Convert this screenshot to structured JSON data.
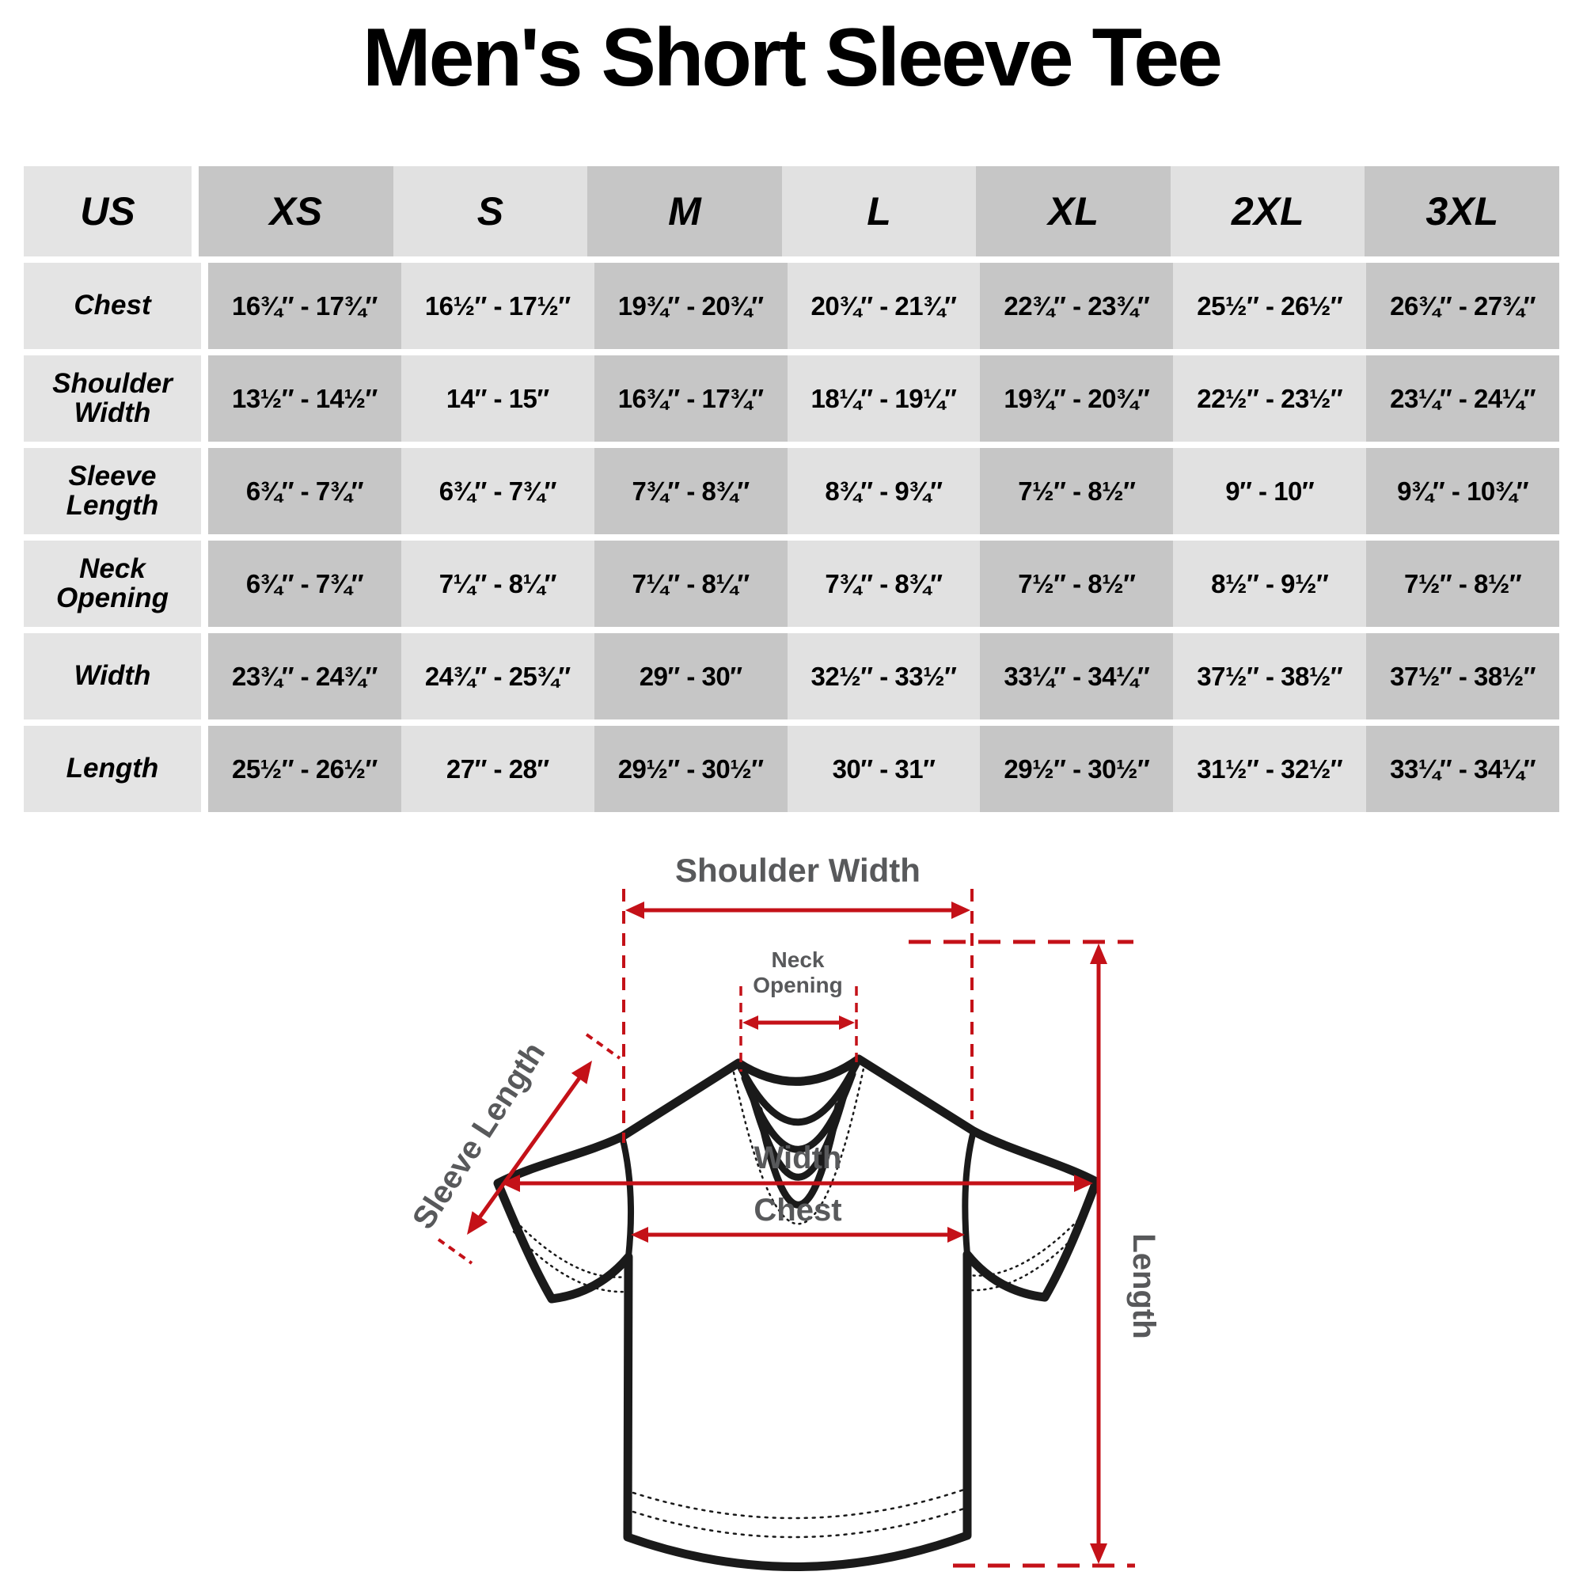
{
  "title": "Men's Short Sleeve Tee",
  "table": {
    "corner_label": "US",
    "sizes": [
      "XS",
      "S",
      "M",
      "L",
      "XL",
      "2XL",
      "3XL"
    ],
    "rows": [
      {
        "label": "Chest",
        "values": [
          "16¾″ - 17¾″",
          "16½″ - 17½″",
          "19¾″ - 20¾″",
          "20¾″ - 21¾″",
          "22¾″ - 23¾″",
          "25½″ - 26½″",
          "26¾″ - 27¾″"
        ]
      },
      {
        "label": "Shoulder Width",
        "values": [
          "13½″ - 14½″",
          "14″ - 15″",
          "16¾″ - 17¾″",
          "18¼″ - 19¼″",
          "19¾″ - 20¾″",
          "22½″ - 23½″",
          "23¼″ - 24¼″"
        ]
      },
      {
        "label": "Sleeve Length",
        "values": [
          "6¾″ - 7¾″",
          "6¾″ - 7¾″",
          "7¾″ - 8¾″",
          "8¾″ - 9¾″",
          "7½″ - 8½″",
          "9″ - 10″",
          "9¾″ - 10¾″"
        ]
      },
      {
        "label": "Neck Opening",
        "values": [
          "6¾″ - 7¾″",
          "7¼″ - 8¼″",
          "7¼″ - 8¼″",
          "7¾″ - 8¾″",
          "7½″ - 8½″",
          "8½″ - 9½″",
          "7½″ - 8½″"
        ]
      },
      {
        "label": "Width",
        "values": [
          "23¾″ - 24¾″",
          "24¾″ - 25¾″",
          "29″ - 30″",
          "32½″ - 33½″",
          "33¼″ - 34¼″",
          "37½″ - 38½″",
          "37½″ - 38½″"
        ]
      },
      {
        "label": "Length",
        "values": [
          "25½″ - 26½″",
          "27″ - 28″",
          "29½″ - 30½″",
          "30″ - 31″",
          "29½″ - 30½″",
          "31½″ - 32½″",
          "33¼″ - 34¼″"
        ]
      }
    ]
  },
  "diagram": {
    "labels": {
      "shoulder_width": "Shoulder Width",
      "neck_line1": "Neck",
      "neck_line2": "Opening",
      "sleeve_length": "Sleeve Length",
      "width": "Width",
      "chest": "Chest",
      "length": "Length"
    },
    "colors": {
      "annotation_red": "#c41118",
      "label_gray": "#58595b",
      "outline_black": "#1a1a1a"
    }
  }
}
